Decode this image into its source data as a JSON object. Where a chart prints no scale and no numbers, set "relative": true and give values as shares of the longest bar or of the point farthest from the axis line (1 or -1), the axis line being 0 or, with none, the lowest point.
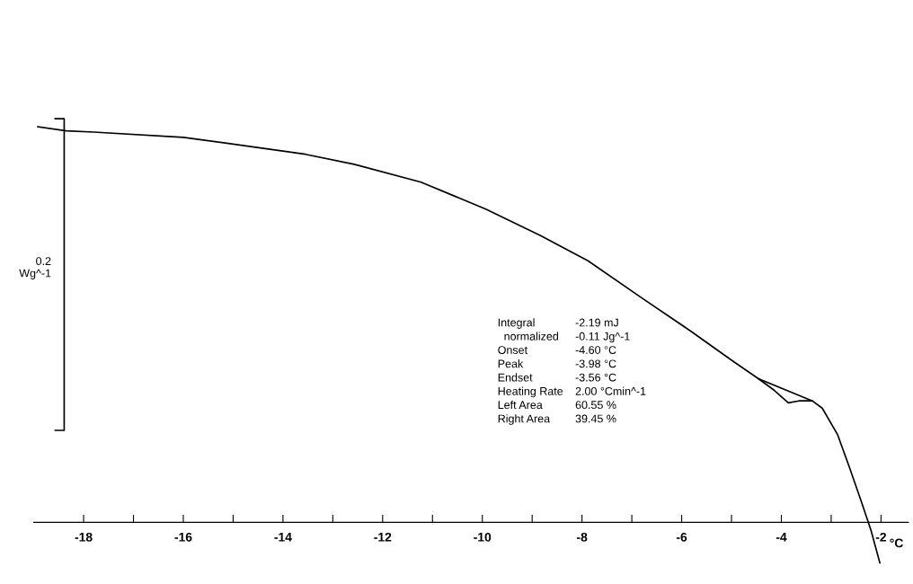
{
  "chart_data": {
    "type": "line",
    "relative": true,
    "xlabel": "°C",
    "ylabel": "0.2\nWg^-1",
    "xlim": [
      -19.0,
      -1.45
    ],
    "xticks": [
      -18,
      {
        "value": -17,
        "label": null
      },
      -16,
      {
        "value": -15,
        "label": null
      },
      -14,
      {
        "value": -13,
        "label": null
      },
      -12,
      {
        "value": -11,
        "label": null
      },
      -10,
      {
        "value": -9,
        "label": null
      },
      -8,
      {
        "value": -7,
        "label": null
      },
      -6,
      {
        "value": -5,
        "label": null
      },
      -4,
      {
        "value": -3,
        "label": null
      },
      -2
    ],
    "series": [
      {
        "color": "#000000",
        "x": [
          -18.92,
          -18.35,
          -17.8,
          -16.0,
          -14.52,
          -13.55,
          -12.57,
          -11.23,
          -9.93,
          -8.84,
          -7.88,
          -6.8,
          -5.82,
          -4.99,
          -4.46,
          -4.14,
          -3.86,
          -3.65,
          -3.38,
          -3.18,
          -2.87,
          -2.63,
          -2.38,
          -2.2,
          -2.02
        ],
        "values": [
          0.98,
          0.97,
          0.967,
          0.954,
          0.929,
          0.912,
          0.887,
          0.843,
          0.776,
          0.711,
          0.648,
          0.556,
          0.474,
          0.401,
          0.356,
          0.327,
          0.296,
          0.301,
          0.301,
          0.283,
          0.217,
          0.135,
          0.046,
          -0.02,
          -0.102
        ]
      },
      {
        "color": "#000000",
        "x": [
          -4.46,
          -3.38
        ],
        "values": [
          0.356,
          0.301
        ]
      },
      {
        "type": "line",
        "color": "#000000",
        "x": [
          -18.57,
          -18.39,
          -18.39,
          -18.57
        ],
        "values": [
          1.0,
          1.0,
          0.228,
          0.228
        ]
      }
    ],
    "annotations": [
      "Integral",
      "-2.19 mJ",
      "  normalized",
      "-0.11 Jg^-1",
      "Onset",
      "-4.60 °C",
      "Peak",
      "-3.98 °C",
      "Endset",
      "-3.56 °C",
      "Heating Rate",
      "2.00 °Cmin^-1",
      "Left Area",
      "60.55 %",
      "Right Area",
      "39.45 %"
    ]
  }
}
